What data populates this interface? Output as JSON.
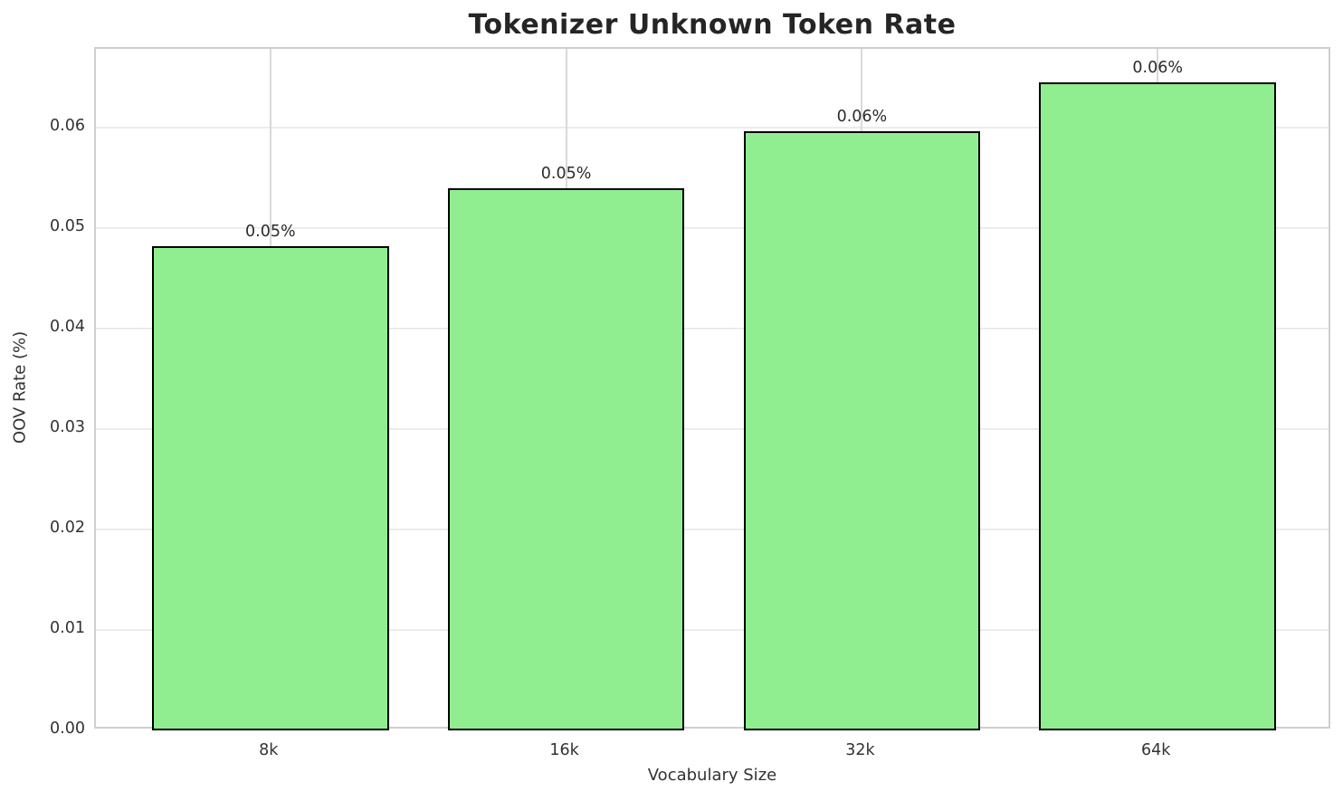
{
  "chart_data": {
    "type": "bar",
    "title": "Tokenizer Unknown Token Rate",
    "xlabel": "Vocabulary Size",
    "ylabel": "OOV Rate (%)",
    "categories": [
      "8k",
      "16k",
      "32k",
      "64k"
    ],
    "values": [
      0.0482,
      0.0539,
      0.0596,
      0.0645
    ],
    "bar_labels": [
      "0.05%",
      "0.05%",
      "0.06%",
      "0.06%"
    ],
    "ytick_labels": [
      "0.00",
      "0.01",
      "0.02",
      "0.03",
      "0.04",
      "0.05",
      "0.06"
    ],
    "ylim": [
      0,
      0.0678
    ],
    "xlim": [
      -0.59,
      3.59
    ],
    "bar_color": "#90ee90",
    "bar_edge_color": "#000000",
    "grid": true,
    "legend": "none"
  }
}
